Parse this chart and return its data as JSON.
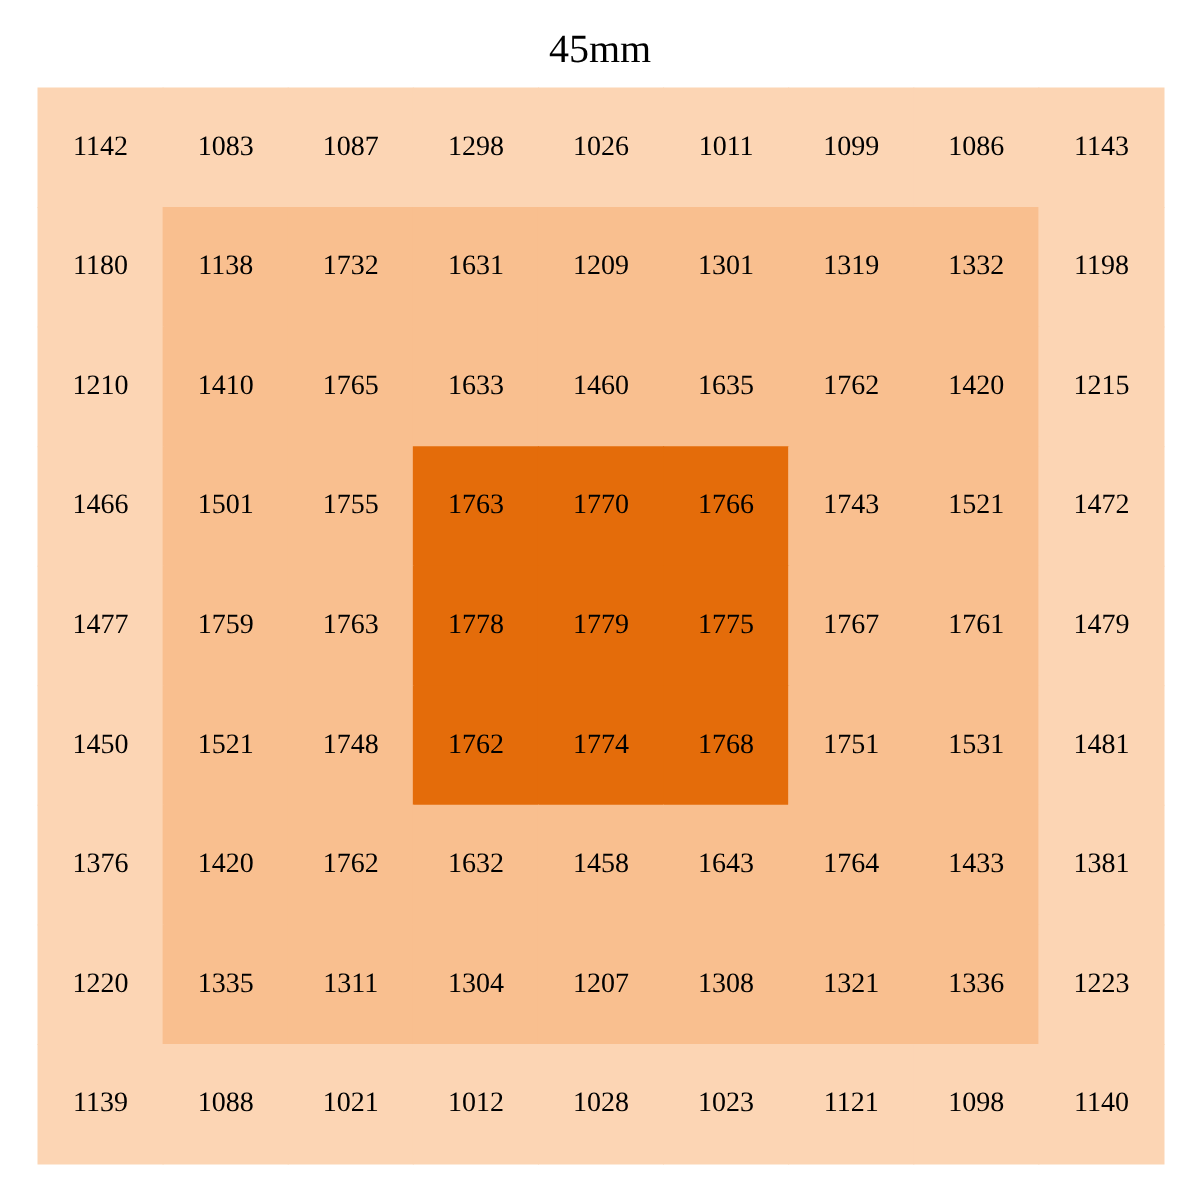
{
  "chart_data": {
    "type": "heatmap",
    "title": "45mm",
    "data_labels": true,
    "categories": [
      null,
      null,
      null,
      null,
      null,
      null,
      null,
      null,
      null
    ],
    "y_categories": [
      null,
      null,
      null,
      null,
      null,
      null,
      null,
      null,
      null
    ],
    "cells": [
      [
        1142,
        1083,
        1087,
        1298,
        1026,
        1011,
        1099,
        1086,
        1143
      ],
      [
        1180,
        1138,
        1732,
        1631,
        1209,
        1301,
        1319,
        1332,
        1198
      ],
      [
        1210,
        1410,
        1765,
        1633,
        1460,
        1635,
        1762,
        1420,
        1215
      ],
      [
        1466,
        1501,
        1755,
        1763,
        1770,
        1766,
        1743,
        1521,
        1472
      ],
      [
        1477,
        1759,
        1763,
        1778,
        1779,
        1775,
        1767,
        1761,
        1479
      ],
      [
        1450,
        1521,
        1748,
        1762,
        1774,
        1768,
        1751,
        1531,
        1481
      ],
      [
        1376,
        1420,
        1762,
        1632,
        1458,
        1643,
        1764,
        1433,
        1381
      ],
      [
        1220,
        1335,
        1311,
        1304,
        1207,
        1308,
        1321,
        1336,
        1223
      ],
      [
        1139,
        1088,
        1021,
        1012,
        1028,
        1023,
        1121,
        1098,
        1140
      ]
    ],
    "colors": [
      [
        "#fcd5b4",
        "#fcd5b4",
        "#fcd5b4",
        "#fcd5b4",
        "#fcd5b4",
        "#fcd5b4",
        "#fcd5b4",
        "#fcd5b4",
        "#fcd5b4"
      ],
      [
        "#fcd5b4",
        "#f9bf8f",
        "#f9bf8f",
        "#f9bf8f",
        "#f9bf8f",
        "#f9bf8f",
        "#f9bf8f",
        "#f9bf8f",
        "#fcd5b4"
      ],
      [
        "#fcd5b4",
        "#f9bf8f",
        "#f9bf8f",
        "#f9bf8f",
        "#f9bf8f",
        "#f9bf8f",
        "#f9bf8f",
        "#f9bf8f",
        "#fcd5b4"
      ],
      [
        "#fcd5b4",
        "#f9bf8f",
        "#f9bf8f",
        "#e46c0a",
        "#e46c0a",
        "#e46c0a",
        "#f9bf8f",
        "#f9bf8f",
        "#fcd5b4"
      ],
      [
        "#fcd5b4",
        "#f9bf8f",
        "#f9bf8f",
        "#e46c0a",
        "#e46c0a",
        "#e46c0a",
        "#f9bf8f",
        "#f9bf8f",
        "#fcd5b4"
      ],
      [
        "#fcd5b4",
        "#f9bf8f",
        "#f9bf8f",
        "#e46c0a",
        "#e46c0a",
        "#e46c0a",
        "#f9bf8f",
        "#f9bf8f",
        "#fcd5b4"
      ],
      [
        "#fcd5b4",
        "#f9bf8f",
        "#f9bf8f",
        "#f9bf8f",
        "#f9bf8f",
        "#f9bf8f",
        "#f9bf8f",
        "#f9bf8f",
        "#fcd5b4"
      ],
      [
        "#fcd5b4",
        "#f9bf8f",
        "#f9bf8f",
        "#f9bf8f",
        "#f9bf8f",
        "#f9bf8f",
        "#f9bf8f",
        "#f9bf8f",
        "#fcd5b4"
      ],
      [
        "#fcd5b4",
        "#fcd5b4",
        "#fcd5b4",
        "#fcd5b4",
        "#fcd5b4",
        "#fcd5b4",
        "#fcd5b4",
        "#fcd5b4",
        "#fcd5b4"
      ]
    ]
  }
}
